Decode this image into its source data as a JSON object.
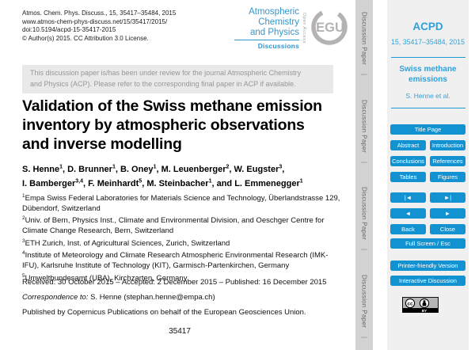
{
  "colors": {
    "accent_blue": "#1392d2",
    "panel_text_blue": "#2ea1da",
    "journal_blue": "#3296cd",
    "notice_bg": "#e9e9e9",
    "strip_bg": "#d3d3d3",
    "egu_gray": "#b3b3b3"
  },
  "header": {
    "citation_lines": [
      "Atmos. Chem. Phys. Discuss., 15, 35417–35484, 2015",
      "www.atmos-chem-phys-discuss.net/15/35417/2015/",
      "doi:10.5194/acpd-15-35417-2015",
      "© Author(s) 2015. CC Attribution 3.0 License."
    ],
    "journal_name_lines": [
      "Atmospheric",
      "Chemistry",
      "and Physics"
    ],
    "journal_discussions": "Discussions",
    "open_access": "Open Access",
    "egu_logo_text": "EGU"
  },
  "notice_lines": [
    "This discussion paper is/has been under review for the journal Atmospheric Chemistry",
    "and Physics (ACP). Please refer to the corresponding final paper in ACP if available."
  ],
  "article": {
    "title": "Validation of the Swiss methane emission inventory by atmospheric observations and inverse modelling",
    "title_lines": [
      "Validation of the Swiss methane emission",
      "inventory by atmospheric observations",
      "and inverse modelling"
    ],
    "authors": [
      {
        "name": "S. Henne",
        "sup": "1"
      },
      {
        "name": "D. Brunner",
        "sup": "1"
      },
      {
        "name": "B. Oney",
        "sup": "1"
      },
      {
        "name": "M. Leuenberger",
        "sup": "2"
      },
      {
        "name": "W. Eugster",
        "sup": "3",
        "break_after": true
      },
      {
        "name": "I. Bamberger",
        "sup": "3,4"
      },
      {
        "name": "F. Meinhardt",
        "sup": "5"
      },
      {
        "name": "M. Steinbacher",
        "sup": "1"
      },
      {
        "name": "L. Emmenegger",
        "sup": "1",
        "prefix": "and "
      }
    ],
    "affiliations": [
      {
        "sup": "1",
        "text": "Empa Swiss Federal Laboratories for Materials Science and Technology, Überlandstrasse 129, Dübendorf, Switzerland"
      },
      {
        "sup": "2",
        "text": "Univ. of Bern, Physics Inst., Climate and Environmental Division, and Oeschger Centre for Climate Change Research, Bern, Switzerland"
      },
      {
        "sup": "3",
        "text": "ETH Zurich, Inst. of Agricultural Sciences, Zurich, Switzerland"
      },
      {
        "sup": "4",
        "text": "Institute of Meteorology and Climate Research Atmospheric Environmental Research (IMK-IFU), Karlsruhe Institute of Technology (KIT), Garmisch-Partenkirchen, Germany"
      },
      {
        "sup": "5",
        "text": "Umweltbundesamt (UBA), Kirchzarten, Germany"
      }
    ],
    "dates_line": "Received: 30 October 2015 – Accepted: 2 December 2015 – Published: 16 December 2015",
    "correspondence_label": "Correspondence to:",
    "correspondence_value": " S. Henne (stephan.henne@empa.ch)",
    "publisher_line": "Published by Copernicus Publications on behalf of the European Geosciences Union.",
    "page_number": "35417"
  },
  "side_strip": {
    "label": "Discussion Paper",
    "separator": "|",
    "count": 4
  },
  "sidebar": {
    "journal_abbr": "ACPD",
    "volume_pages": "15, 35417–35484, 2015",
    "short_title": "Swiss methane emissions",
    "authors_short": "S. Henne et al.",
    "buttons": {
      "title_page": "Title Page",
      "pair_rows": [
        [
          {
            "label": "Abstract",
            "name": "abstract-button"
          },
          {
            "label": "Introduction",
            "name": "introduction-button"
          }
        ],
        [
          {
            "label": "Conclusions",
            "name": "conclusions-button"
          },
          {
            "label": "References",
            "name": "references-button"
          }
        ],
        [
          {
            "label": "Tables",
            "name": "tables-button"
          },
          {
            "label": "Figures",
            "name": "figures-button"
          }
        ],
        [
          {
            "label": "|◄",
            "name": "nav-first-button"
          },
          {
            "label": "►|",
            "name": "nav-last-button"
          }
        ],
        [
          {
            "label": "◄",
            "name": "nav-prev-button"
          },
          {
            "label": "►",
            "name": "nav-next-button"
          }
        ],
        [
          {
            "label": "Back",
            "name": "back-button"
          },
          {
            "label": "Close",
            "name": "close-button"
          }
        ]
      ],
      "full_screen": "Full Screen / Esc",
      "printer": "Printer-friendly Version",
      "interactive": "Interactive Discussion"
    },
    "license_badge": {
      "cc": "cc",
      "by": "BY"
    }
  }
}
